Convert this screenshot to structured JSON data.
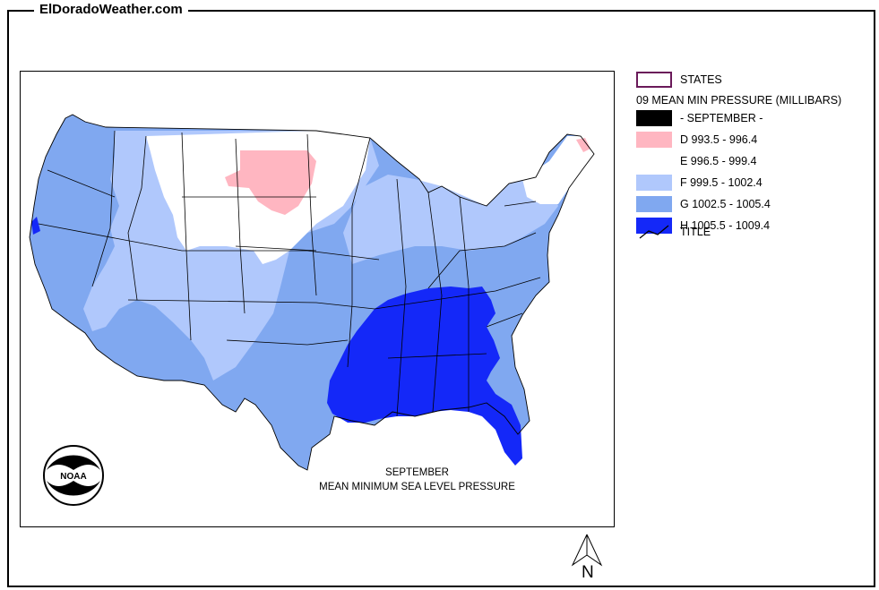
{
  "site_title": "ElDoradoWeather.com",
  "caption": {
    "line1": "SEPTEMBER",
    "line2": "MEAN MINIMUM SEA LEVEL PRESSURE"
  },
  "noaa_logo_text": "NOAA",
  "north_label": "N",
  "legend": {
    "states_label": "STATES",
    "heading": "09 MEAN MIN PRESSURE (MILLIBARS)",
    "entries": [
      {
        "label": "- SEPTEMBER -",
        "color": "#000000"
      },
      {
        "label": "D 993.5 - 996.4",
        "color": "#ffb6c1"
      },
      {
        "label": "E 996.5 - 999.4",
        "color": "#ffffff"
      },
      {
        "label": "F 999.5 - 1002.4",
        "color": "#b0c8fc"
      },
      {
        "label": "G 1002.5 - 1005.4",
        "color": "#80a8f0"
      },
      {
        "label": "H 1005.5 - 1009.4",
        "color": "#1428f8"
      }
    ],
    "title_label": "TITLE",
    "states_swatch_color": "#6a1a5a"
  }
}
